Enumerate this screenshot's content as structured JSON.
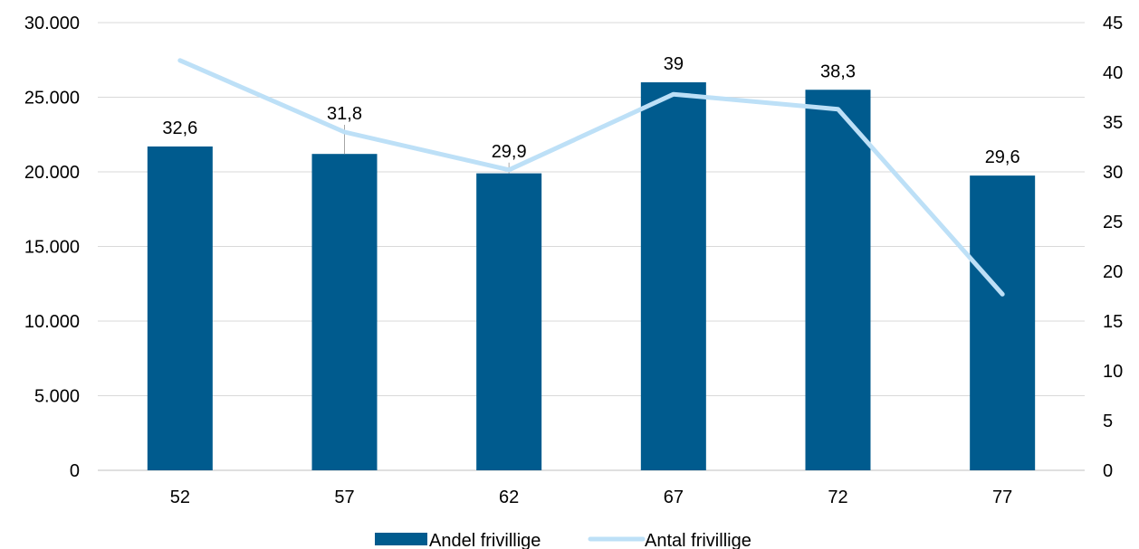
{
  "chart_data": {
    "type": "bar",
    "categories": [
      "52",
      "57",
      "62",
      "67",
      "72",
      "77"
    ],
    "series": [
      {
        "name": "Andel frivillige",
        "type": "bar",
        "axis": "left",
        "values": [
          21700,
          21200,
          19900,
          26000,
          25500,
          19750
        ],
        "data_labels": [
          "32,6",
          "31,8",
          "29,9",
          "39",
          "38,3",
          "29,6"
        ],
        "color": "#005B8E"
      },
      {
        "name": "Antal frivillige",
        "type": "line",
        "axis": "right",
        "values": [
          41.2,
          34,
          30.2,
          37.8,
          36.3,
          17.7
        ],
        "color": "#BDE0F7"
      }
    ],
    "y_left": {
      "ylim": [
        0,
        30000
      ],
      "ticks": [
        0,
        5000,
        10000,
        15000,
        20000,
        25000,
        30000
      ],
      "tick_labels": [
        "0",
        "5.000",
        "10.000",
        "15.000",
        "20.000",
        "25.000",
        "30.000"
      ]
    },
    "y_right": {
      "ylim": [
        0,
        45
      ],
      "ticks": [
        0,
        5,
        10,
        15,
        20,
        25,
        30,
        35,
        40,
        45
      ],
      "tick_labels": [
        "0",
        "5",
        "10",
        "15",
        "20",
        "25",
        "30",
        "35",
        "40",
        "45"
      ]
    },
    "grid": true,
    "legend_position": "bottom"
  }
}
